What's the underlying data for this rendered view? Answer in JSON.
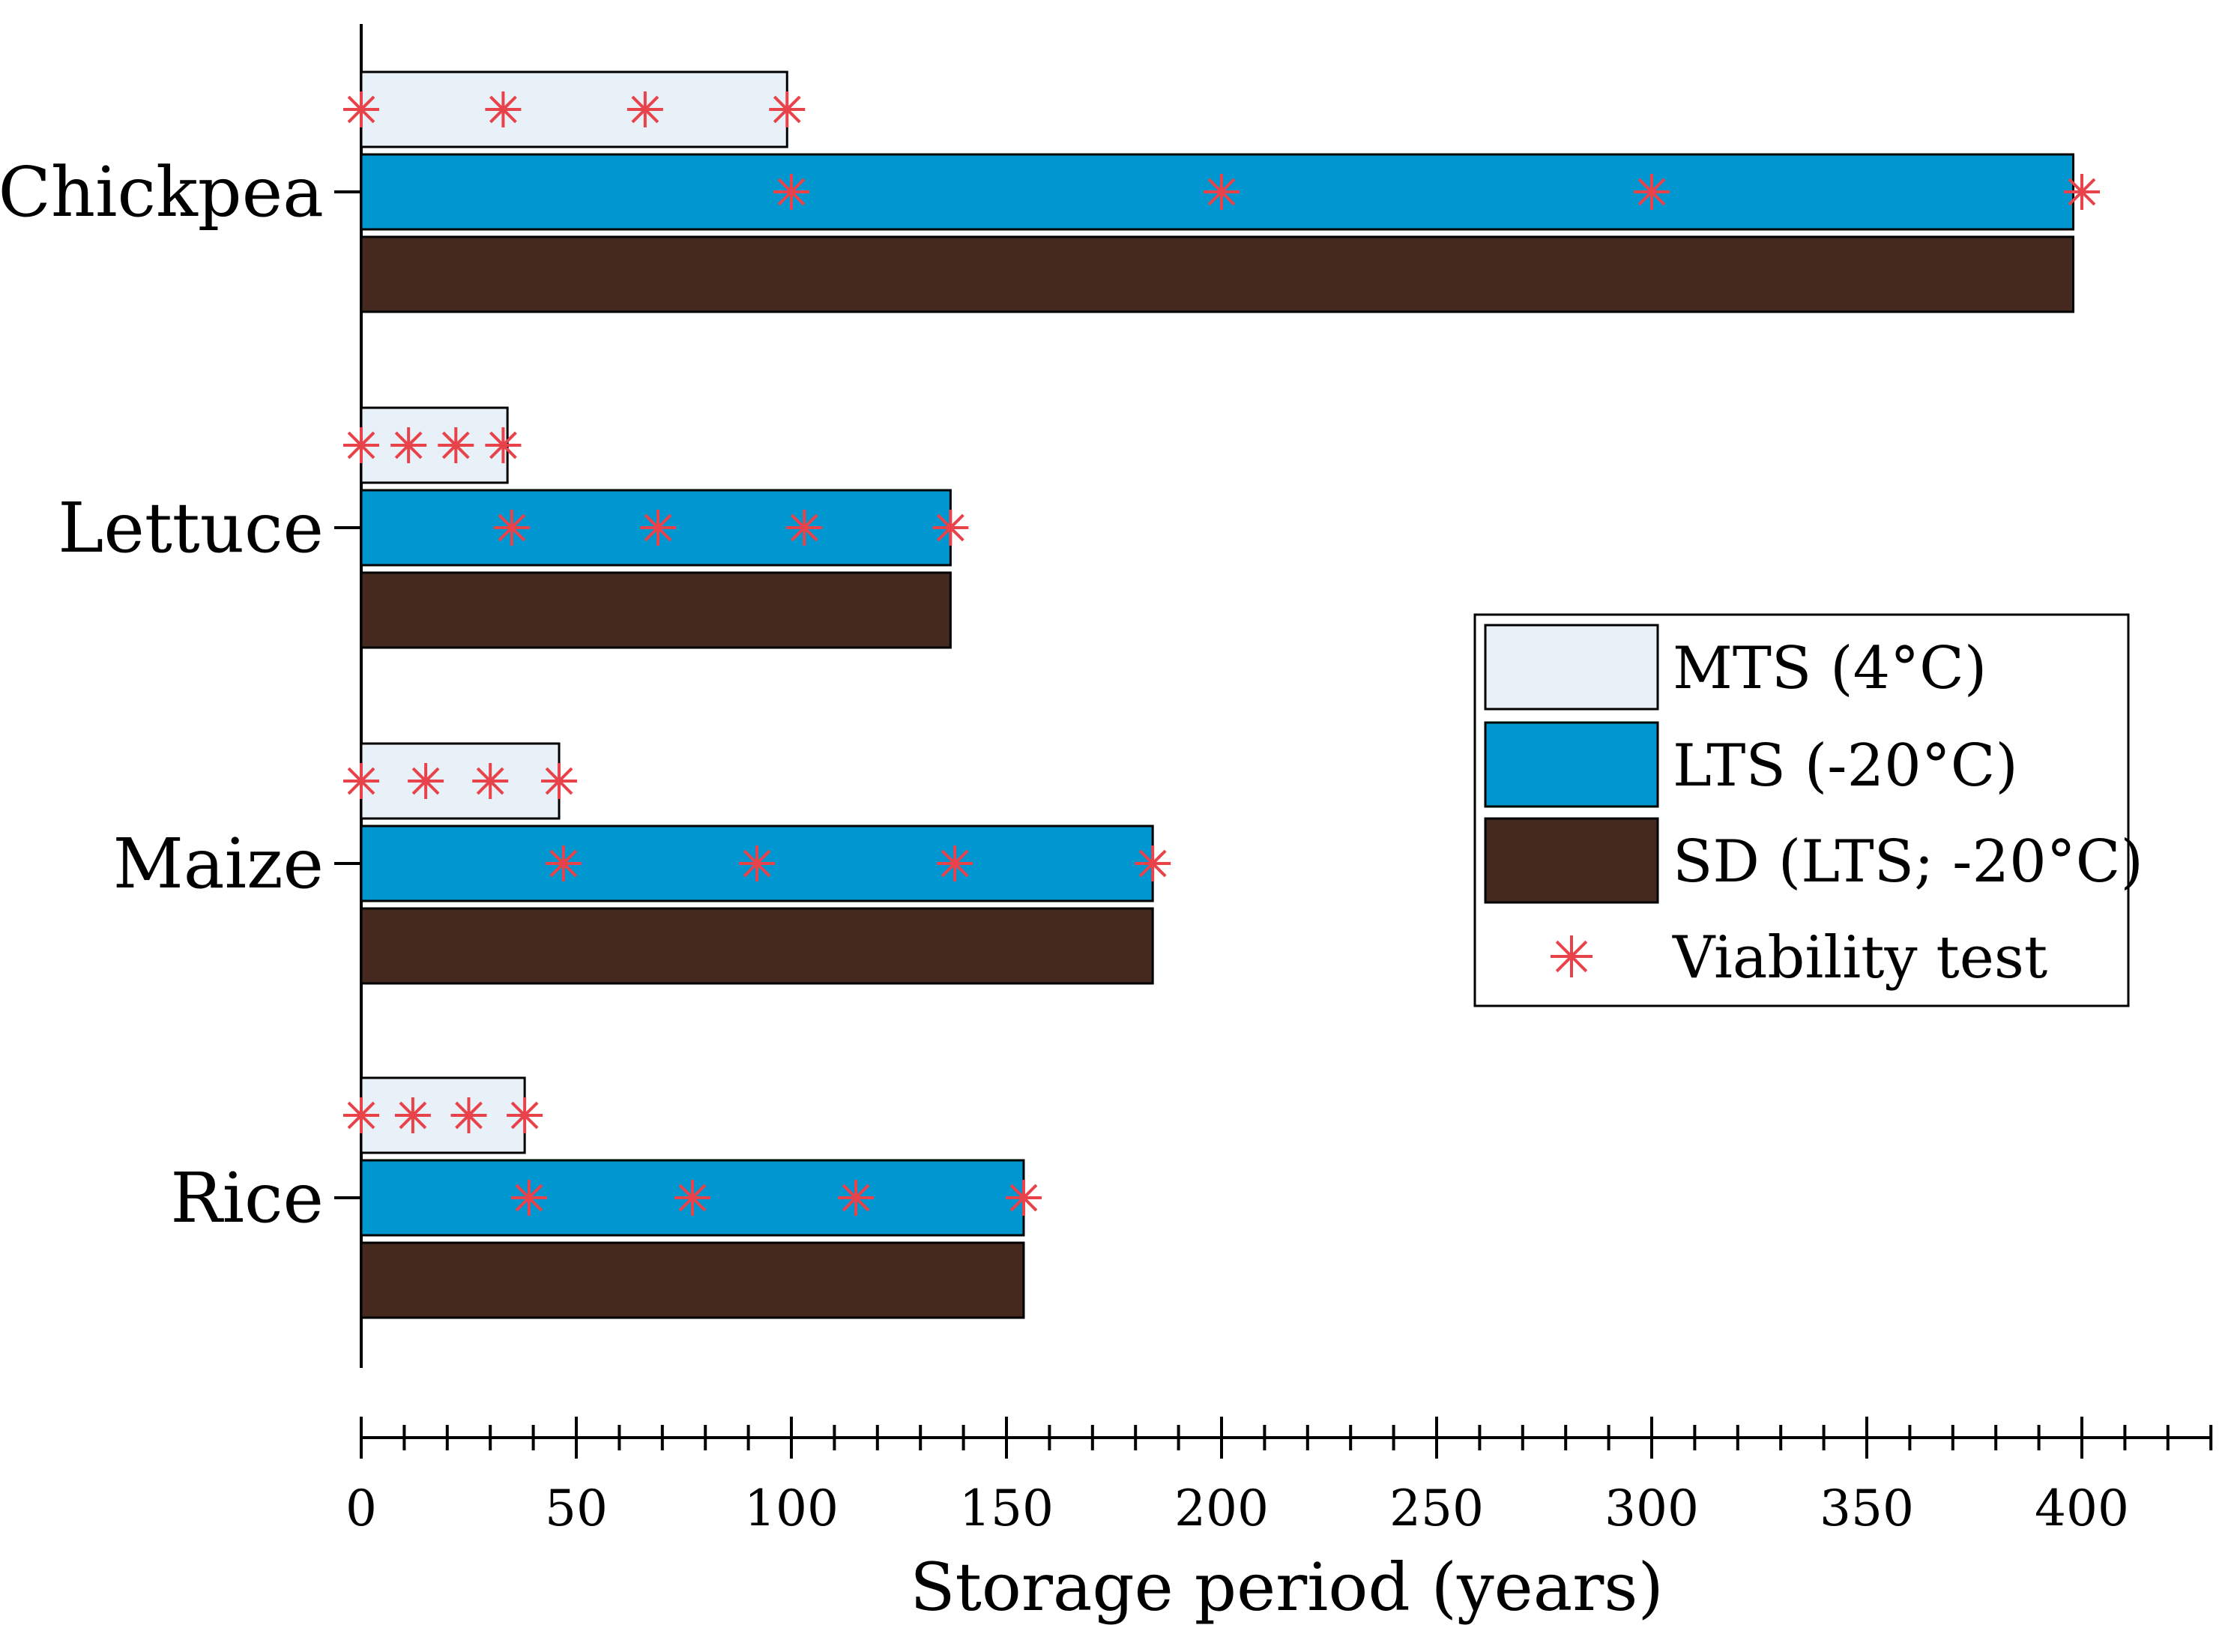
{
  "chart_data": {
    "type": "bar",
    "orientation": "horizontal",
    "title": "",
    "xlabel": "Storage period (years)",
    "ylabel": "",
    "xlim": [
      0,
      430
    ],
    "xticks": [
      0,
      50,
      100,
      150,
      200,
      250,
      300,
      350,
      400
    ],
    "x_minor_tick_step": 10,
    "categories": [
      "Chickpea",
      "Lettuce",
      "Maize",
      "Rice"
    ],
    "series": [
      {
        "name": "MTS (4°C)",
        "color": "#e8f0f8",
        "values": [
          99,
          34,
          46,
          38
        ]
      },
      {
        "name": "LTS (-20°C)",
        "color": "#0097d1",
        "values": [
          398,
          137,
          184,
          154
        ]
      },
      {
        "name": "SD (LTS; -20°C)",
        "color": "#45291e",
        "values": [
          398,
          137,
          184,
          154
        ]
      }
    ],
    "viability_tests": {
      "name": "Viability test",
      "color": "#e8434b",
      "points": {
        "Chickpea": {
          "MTS (4°C)": [
            0,
            33,
            66,
            99
          ],
          "LTS (-20°C)": [
            100,
            200,
            300,
            400
          ]
        },
        "Lettuce": {
          "MTS (4°C)": [
            0,
            11,
            22,
            33
          ],
          "LTS (-20°C)": [
            35,
            69,
            103,
            137
          ]
        },
        "Maize": {
          "MTS (4°C)": [
            0,
            15,
            30,
            46
          ],
          "LTS (-20°C)": [
            47,
            92,
            138,
            184
          ]
        },
        "Rice": {
          "MTS (4°C)": [
            0,
            12,
            25,
            38
          ],
          "LTS (-20°C)": [
            39,
            77,
            115,
            154
          ]
        }
      }
    },
    "legend": {
      "position": "center-right",
      "entries": [
        "MTS (4°C)",
        "LTS (-20°C)",
        "SD (LTS; -20°C)",
        "Viability test"
      ]
    }
  }
}
